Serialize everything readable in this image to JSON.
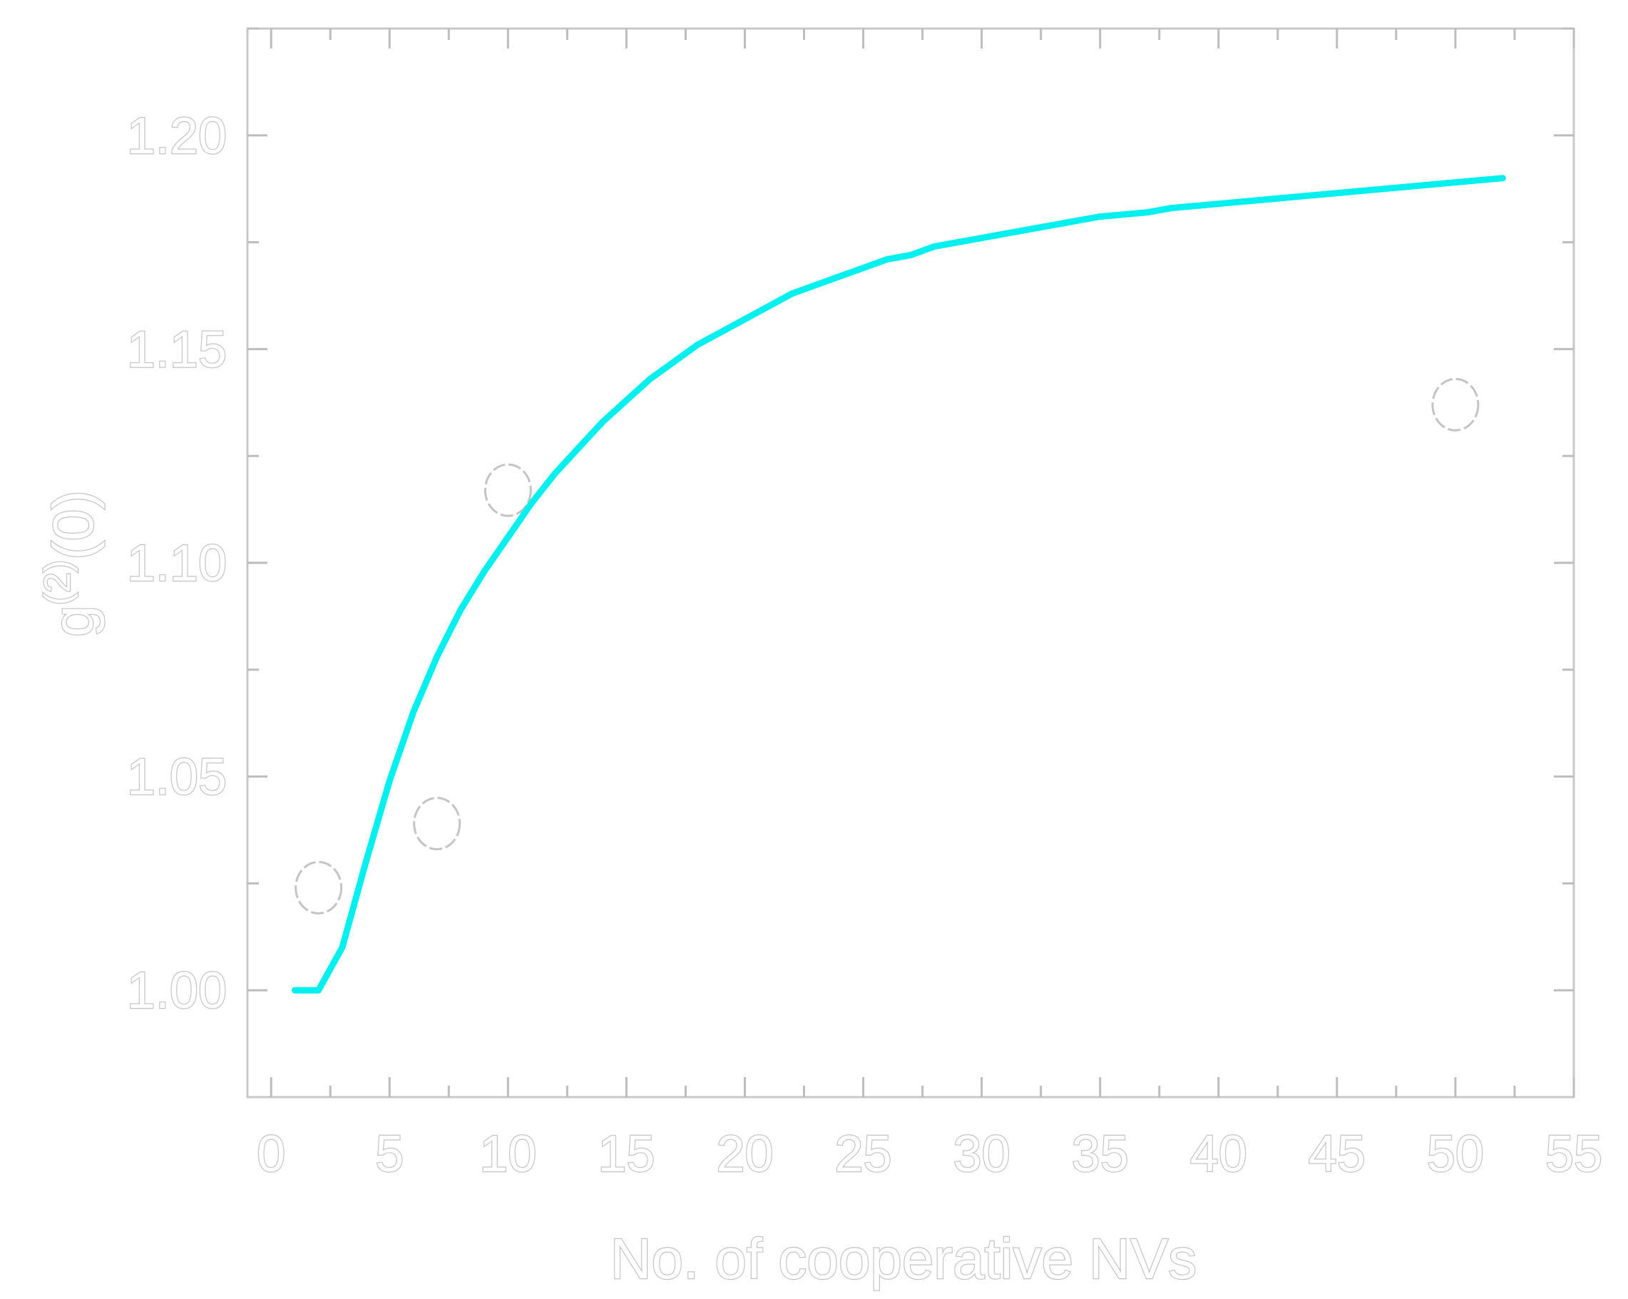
{
  "chart_data": {
    "type": "scatter",
    "xlabel": "No. of cooperative NVs",
    "ylabel": {
      "base": "g",
      "sup": "(2)",
      "arg": "(0)"
    },
    "xlim": [
      -1,
      55
    ],
    "ylim": [
      0.975,
      1.225
    ],
    "xticks": [
      0,
      5,
      10,
      15,
      20,
      25,
      30,
      35,
      40,
      45,
      50,
      55
    ],
    "xtick_labels": [
      "0",
      "5",
      "10",
      "15",
      "20",
      "25",
      "30",
      "35",
      "40",
      "45",
      "50",
      "55"
    ],
    "yticks": [
      1.0,
      1.05,
      1.1,
      1.15,
      1.2
    ],
    "ytick_labels": [
      "1.00",
      "1.05",
      "1.10",
      "1.15",
      "1.20"
    ],
    "grid": false,
    "legend": "none",
    "series": [
      {
        "kind": "markers",
        "color": "#c4c4c4",
        "points": [
          {
            "x": 2,
            "y": 1.024
          },
          {
            "x": 7,
            "y": 1.039
          },
          {
            "x": 10,
            "y": 1.117
          },
          {
            "x": 50,
            "y": 1.137
          }
        ]
      },
      {
        "kind": "line",
        "color": "#00f0f0",
        "x": [
          1,
          2,
          3,
          4,
          5,
          6,
          7,
          8,
          9,
          10,
          11,
          12,
          13,
          14,
          15,
          16,
          17,
          18,
          19,
          20,
          21,
          22,
          23,
          24,
          25,
          26,
          27,
          28,
          29,
          30,
          31,
          32,
          33,
          34,
          35,
          36,
          37,
          38,
          39,
          40,
          41,
          42,
          43,
          44,
          45,
          46,
          47,
          48,
          49,
          50,
          51,
          52
        ],
        "y": [
          1.0,
          1.0,
          1.01,
          1.03,
          1.049,
          1.065,
          1.078,
          1.089,
          1.098,
          1.106,
          1.114,
          1.121,
          1.127,
          1.133,
          1.138,
          1.143,
          1.147,
          1.151,
          1.154,
          1.157,
          1.16,
          1.163,
          1.165,
          1.167,
          1.169,
          1.171,
          1.172,
          1.174,
          1.175,
          1.176,
          1.177,
          1.178,
          1.179,
          1.18,
          1.181,
          1.1815,
          1.182,
          1.183,
          1.1835,
          1.184,
          1.1845,
          1.185,
          1.1855,
          1.186,
          1.1865,
          1.187,
          1.1875,
          1.188,
          1.1885,
          1.189,
          1.1895,
          1.19
        ]
      }
    ]
  }
}
